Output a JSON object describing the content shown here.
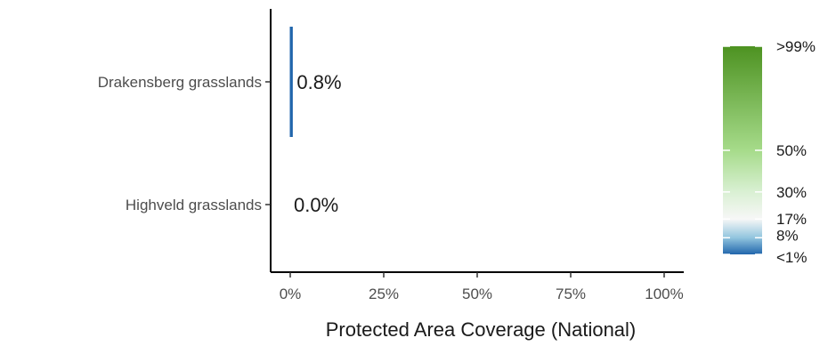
{
  "chart_data": {
    "type": "bar",
    "orientation": "horizontal",
    "categories": [
      "Drakensberg grasslands",
      "Highveld grasslands"
    ],
    "values": [
      0.8,
      0.0
    ],
    "value_labels": [
      "0.8%",
      "0.0%"
    ],
    "xlabel": "Protected Area Coverage (National)",
    "ylabel": "",
    "xlim": [
      0,
      100
    ],
    "x_ticks": [
      0,
      25,
      50,
      75,
      100
    ],
    "x_tick_labels": [
      "0%",
      "25%",
      "50%",
      "75%",
      "100%"
    ],
    "grid": false,
    "legend": {
      "type": "colorbar",
      "placement": "right",
      "labels": [
        ">99%",
        "50%",
        "30%",
        "17%",
        "8%",
        "<1%"
      ],
      "stops": [
        {
          "value": 0,
          "color": "#2166ac"
        },
        {
          "value": 8,
          "color": "#92c5de"
        },
        {
          "value": 17,
          "color": "#f7f7f7"
        },
        {
          "value": 30,
          "color": "#d9f0d3"
        },
        {
          "value": 50,
          "color": "#a6db8a"
        },
        {
          "value": 100,
          "color": "#4d9221"
        }
      ]
    },
    "bar_colors": [
      "#2166ac",
      "#2166ac"
    ]
  }
}
